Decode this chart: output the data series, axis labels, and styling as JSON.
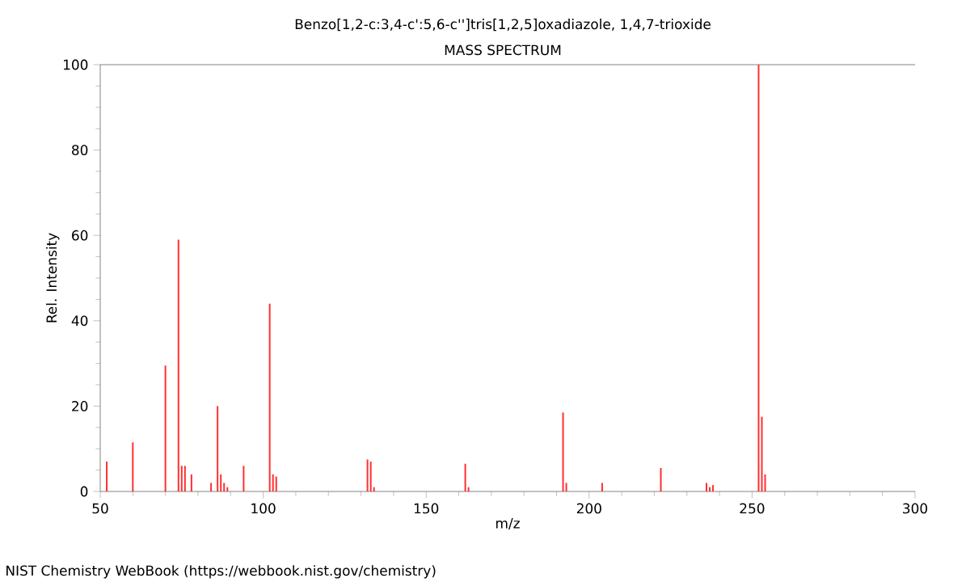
{
  "chart_data": {
    "type": "bar",
    "title": "Benzo[1,2-c:3,4-c':5,6-c'']tris[1,2,5]oxadiazole, 1,4,7-trioxide",
    "subtitle": "MASS SPECTRUM",
    "xlabel": "m/z",
    "ylabel": "Rel. Intensity",
    "annotations": [
      "NIST Chemistry WebBook (https://webbook.nist.gov/chemistry)"
    ],
    "x": [
      52,
      60,
      70,
      74,
      75,
      76,
      78,
      84,
      86,
      87,
      88,
      89,
      94,
      102,
      103,
      104,
      132,
      133,
      134,
      162,
      163,
      192,
      193,
      204,
      222,
      236,
      237,
      238,
      252,
      253,
      254
    ],
    "values": [
      7,
      11.5,
      29.5,
      59,
      6,
      6,
      4,
      2,
      20,
      4,
      2,
      1,
      6,
      44,
      4,
      3.5,
      7.5,
      7,
      1,
      6.5,
      1,
      18.5,
      2,
      2,
      5.5,
      2,
      1,
      1.5,
      100,
      17.5,
      4
    ],
    "color": "#ff3030",
    "xlim": [
      50,
      300
    ],
    "xticks": [
      50,
      100,
      150,
      200,
      250,
      300
    ],
    "ylim": [
      0,
      100
    ],
    "yticks": [
      0,
      20,
      40,
      60,
      80,
      100
    ]
  }
}
